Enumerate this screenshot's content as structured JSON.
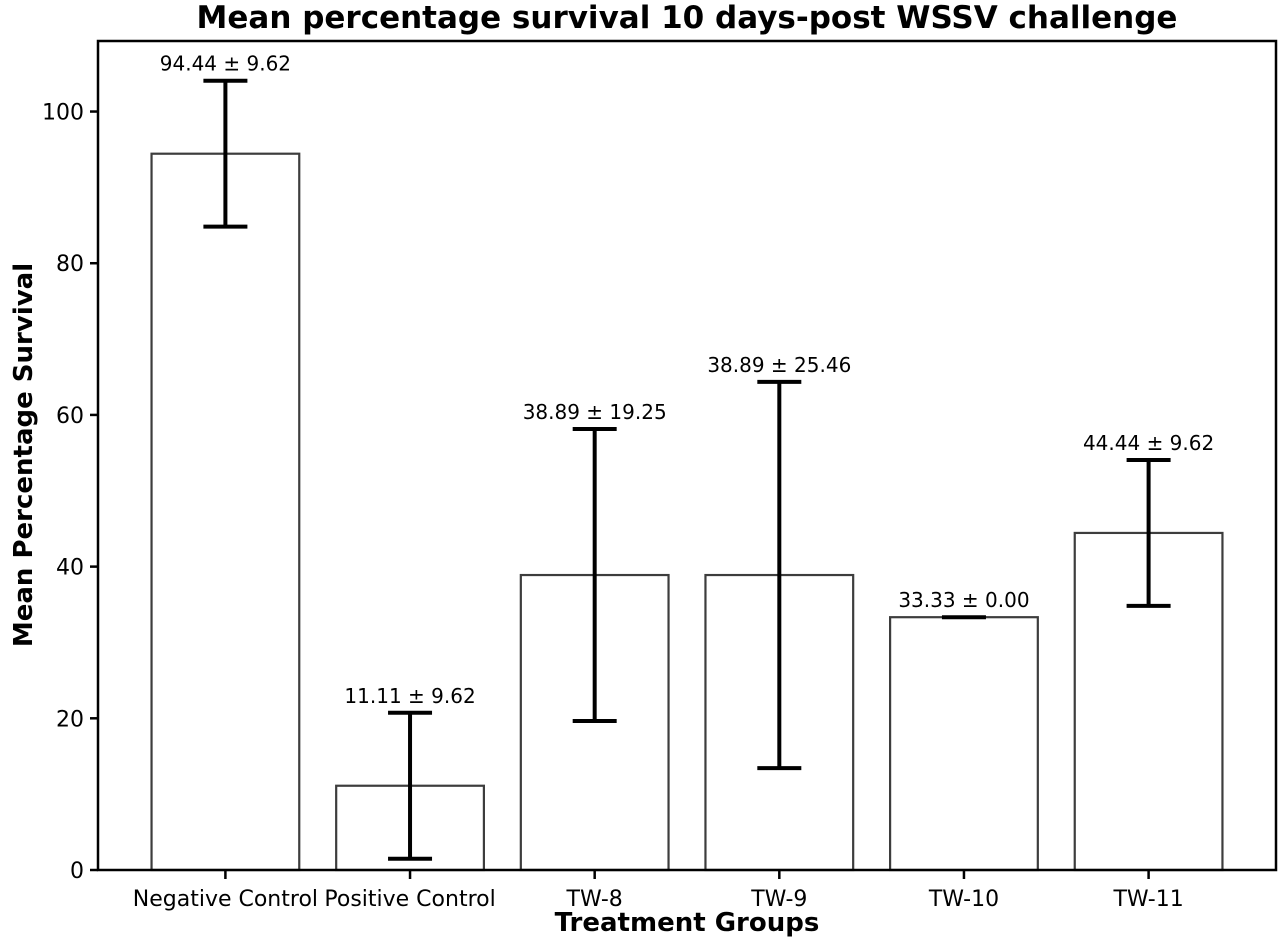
{
  "figure": {
    "background": "#ffffff"
  },
  "chart_data": {
    "type": "bar",
    "title": "Mean percentage survival 10 days-post WSSV challenge",
    "xlabel": "Treatment Groups",
    "ylabel": "Mean Percentage Survival",
    "categories": [
      "Negative Control",
      "Positive Control",
      "TW-8",
      "TW-9",
      "TW-10",
      "TW-11"
    ],
    "values": [
      94.44,
      11.11,
      38.89,
      38.89,
      33.33,
      44.44
    ],
    "errors": [
      9.62,
      9.62,
      19.25,
      25.46,
      0.0,
      9.62
    ],
    "value_labels": [
      "94.44 ± 9.62",
      "11.11 ± 9.62",
      "38.89 ± 19.25",
      "38.89 ± 25.46",
      "33.33 ± 0.00",
      "44.44 ± 9.62"
    ],
    "yticks": [
      0,
      20,
      40,
      60,
      80,
      100
    ],
    "ylim": [
      0,
      109.3
    ],
    "grid": false,
    "legend": null,
    "bar_fill": "#ffffff",
    "bar_edge_color": "#3d3d3d",
    "error_bar_color": "#000000",
    "axis_color": "#000000",
    "text_color": "#000000"
  }
}
